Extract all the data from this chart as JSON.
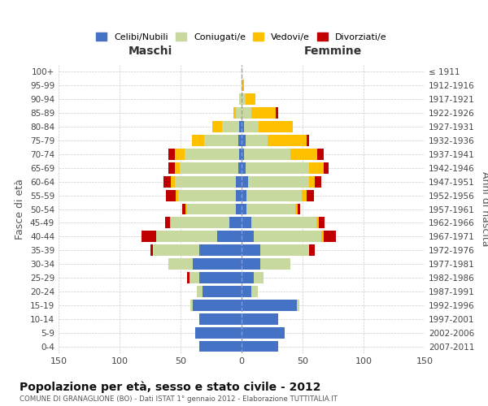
{
  "age_groups": [
    "0-4",
    "5-9",
    "10-14",
    "15-19",
    "20-24",
    "25-29",
    "30-34",
    "35-39",
    "40-44",
    "45-49",
    "50-54",
    "55-59",
    "60-64",
    "65-69",
    "70-74",
    "75-79",
    "80-84",
    "85-89",
    "90-94",
    "95-99",
    "100+"
  ],
  "birth_years": [
    "2007-2011",
    "2002-2006",
    "1997-2001",
    "1992-1996",
    "1987-1991",
    "1982-1986",
    "1977-1981",
    "1972-1976",
    "1967-1971",
    "1962-1966",
    "1957-1961",
    "1952-1956",
    "1947-1951",
    "1942-1946",
    "1937-1941",
    "1932-1936",
    "1927-1931",
    "1922-1926",
    "1917-1921",
    "1912-1916",
    "≤ 1911"
  ],
  "maschi": {
    "celibi": [
      35,
      38,
      35,
      40,
      32,
      35,
      40,
      35,
      20,
      10,
      5,
      5,
      5,
      3,
      2,
      3,
      2,
      0,
      0,
      0,
      0
    ],
    "coniugati": [
      0,
      0,
      0,
      2,
      5,
      8,
      20,
      38,
      50,
      48,
      40,
      47,
      50,
      48,
      45,
      28,
      14,
      5,
      2,
      0,
      0
    ],
    "vedovi": [
      0,
      0,
      0,
      0,
      0,
      0,
      0,
      0,
      0,
      1,
      1,
      2,
      3,
      4,
      8,
      10,
      8,
      2,
      0,
      0,
      0
    ],
    "divorziati": [
      0,
      0,
      0,
      0,
      0,
      2,
      0,
      2,
      12,
      4,
      3,
      8,
      6,
      5,
      5,
      0,
      0,
      0,
      0,
      0,
      0
    ]
  },
  "femmine": {
    "nubili": [
      30,
      35,
      30,
      45,
      8,
      10,
      15,
      15,
      10,
      8,
      4,
      4,
      5,
      3,
      2,
      3,
      2,
      0,
      0,
      0,
      0
    ],
    "coniugate": [
      0,
      0,
      0,
      2,
      5,
      8,
      25,
      40,
      55,
      53,
      40,
      45,
      50,
      52,
      38,
      18,
      12,
      8,
      3,
      0,
      0
    ],
    "vedove": [
      0,
      0,
      0,
      0,
      0,
      0,
      0,
      0,
      2,
      2,
      2,
      4,
      5,
      12,
      22,
      32,
      28,
      20,
      8,
      2,
      0
    ],
    "divorziate": [
      0,
      0,
      0,
      0,
      0,
      0,
      0,
      5,
      10,
      5,
      2,
      6,
      5,
      4,
      5,
      2,
      0,
      2,
      0,
      0,
      0
    ]
  },
  "colors": {
    "celibi_nubili": "#4472c4",
    "coniugati_e": "#c8d9a0",
    "vedovi_e": "#ffc000",
    "divorziati_e": "#c00000"
  },
  "title": "Popolazione per età, sesso e stato civile - 2012",
  "subtitle": "COMUNE DI GRANAGLIONE (BO) - Dati ISTAT 1° gennaio 2012 - Elaborazione TUTTITALIA.IT",
  "ylabel_left": "Fasce di età",
  "ylabel_right": "Anni di nascita",
  "xlabel_left": "Maschi",
  "xlabel_right": "Femmine",
  "xlim": 150,
  "legend_labels": [
    "Celibi/Nubili",
    "Coniugati/e",
    "Vedovi/e",
    "Divorziati/e"
  ],
  "background_color": "#ffffff",
  "grid_color": "#cccccc"
}
